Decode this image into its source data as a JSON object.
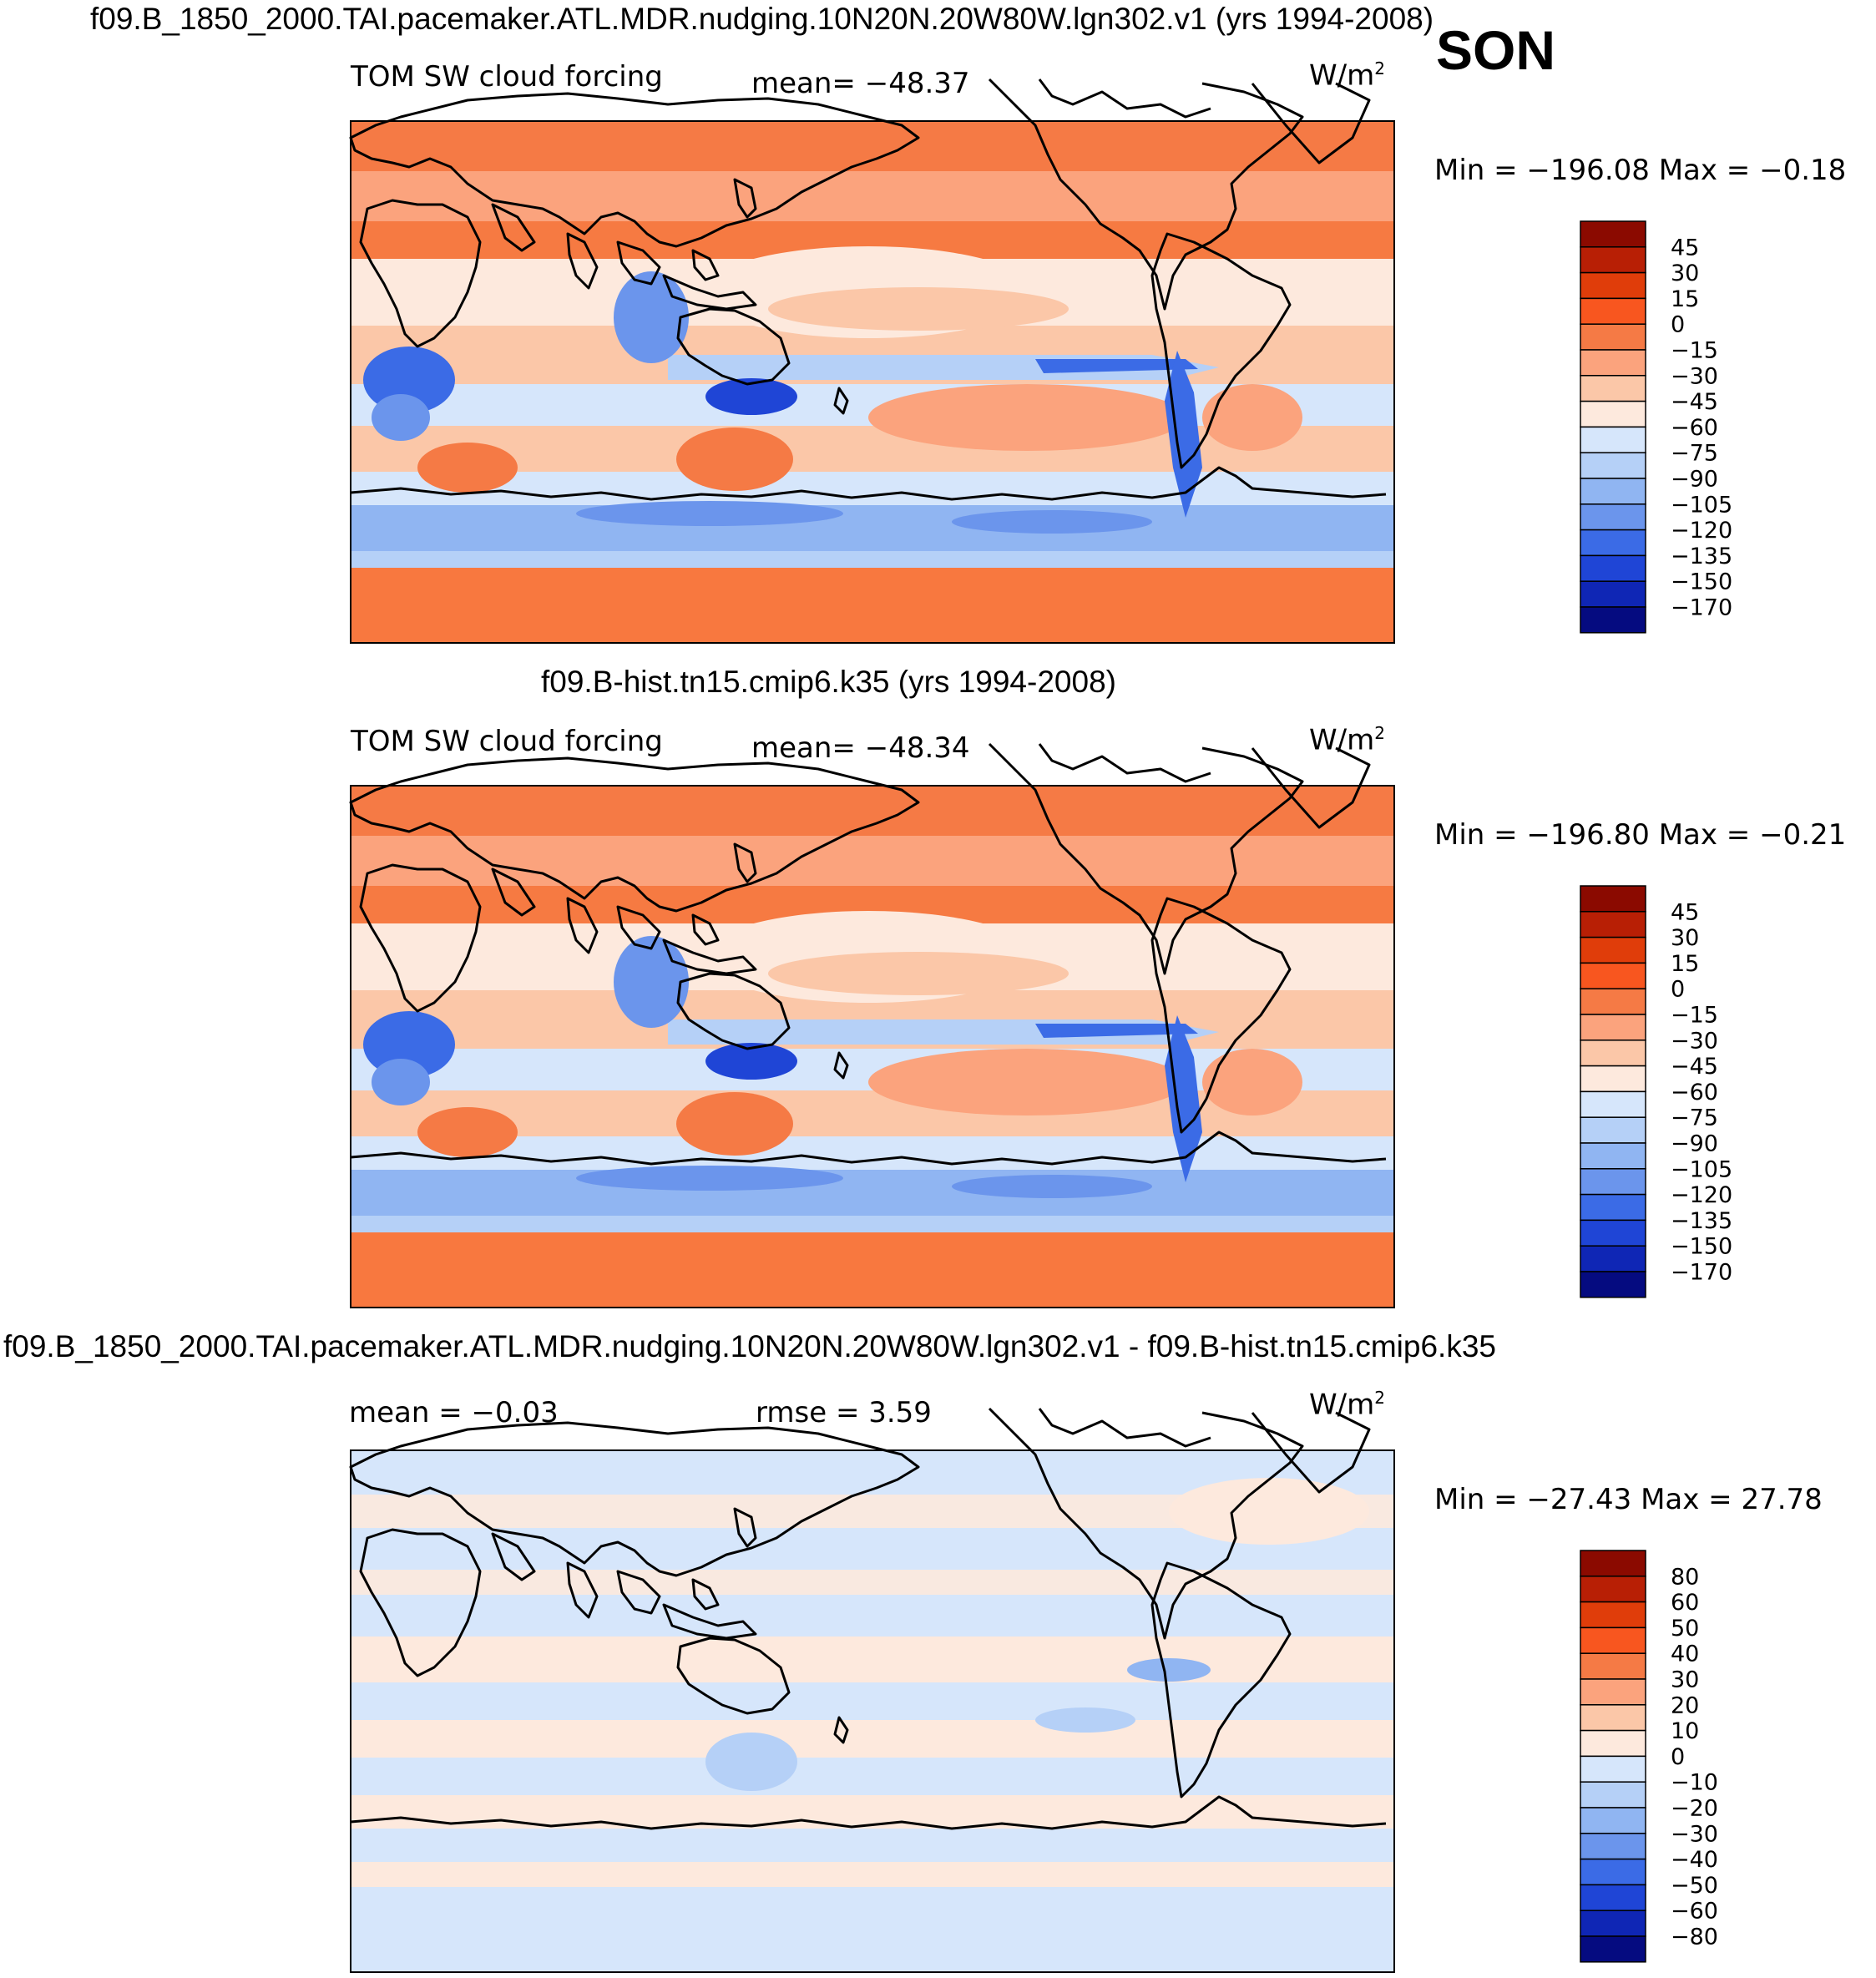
{
  "season": "SON",
  "panels": [
    {
      "title": "f09.B_1850_2000.TAI.pacemaker.ATL.MDR.nudging.10N20N.20W80W.lgn302.v1 (yrs 1994-2008)",
      "left_label": "TOM SW cloud forcing",
      "center_label": "mean= −48.37",
      "units_base": "W/m",
      "units_exp": "2",
      "minmax": "Min = −196.08 Max =  −0.18",
      "colorbar": {
        "levels": [
          "45",
          "30",
          "15",
          "0",
          "−15",
          "−30",
          "−45",
          "−60",
          "−75",
          "−90",
          "−105",
          "−120",
          "−135",
          "−150",
          "−170"
        ],
        "colors": [
          "#8b0a00",
          "#b81f05",
          "#e03d0a",
          "#f8561f",
          "#f57a45",
          "#fba37d",
          "#fbc7a8",
          "#fde9dd",
          "#d6e6fb",
          "#b5d0f7",
          "#90b5f2",
          "#6b95ec",
          "#3b6be6",
          "#1f45d6",
          "#0f26b5",
          "#050b80"
        ]
      }
    },
    {
      "title": "f09.B-hist.tn15.cmip6.k35 (yrs 1994-2008)",
      "left_label": "TOM SW cloud forcing",
      "center_label": "mean= −48.34",
      "units_base": "W/m",
      "units_exp": "2",
      "minmax": "Min = −196.80 Max =  −0.21",
      "colorbar": {
        "levels": [
          "45",
          "30",
          "15",
          "0",
          "−15",
          "−30",
          "−45",
          "−60",
          "−75",
          "−90",
          "−105",
          "−120",
          "−135",
          "−150",
          "−170"
        ],
        "colors": [
          "#8b0a00",
          "#b81f05",
          "#e03d0a",
          "#f8561f",
          "#f57a45",
          "#fba37d",
          "#fbc7a8",
          "#fde9dd",
          "#d6e6fb",
          "#b5d0f7",
          "#90b5f2",
          "#6b95ec",
          "#3b6be6",
          "#1f45d6",
          "#0f26b5",
          "#050b80"
        ]
      }
    },
    {
      "title": "f09.B_1850_2000.TAI.pacemaker.ATL.MDR.nudging.10N20N.20W80W.lgn302.v1 - f09.B-hist.tn15.cmip6.k35",
      "left_label": "mean =   −0.03",
      "center_label": "rmse =    3.59",
      "units_base": "W/m",
      "units_exp": "2",
      "minmax": "Min = −27.43 Max =  27.78",
      "colorbar": {
        "levels": [
          "80",
          "60",
          "50",
          "40",
          "30",
          "20",
          "10",
          "0",
          "−10",
          "−20",
          "−30",
          "−40",
          "−50",
          "−60",
          "−80"
        ],
        "colors": [
          "#8b0a00",
          "#b81f05",
          "#e03d0a",
          "#f8561f",
          "#f57a45",
          "#fba37d",
          "#fbc7a8",
          "#fde9dd",
          "#d6e6fb",
          "#b5d0f7",
          "#90b5f2",
          "#6b95ec",
          "#3b6be6",
          "#1f45d6",
          "#0f26b5",
          "#050b80"
        ]
      }
    }
  ]
}
